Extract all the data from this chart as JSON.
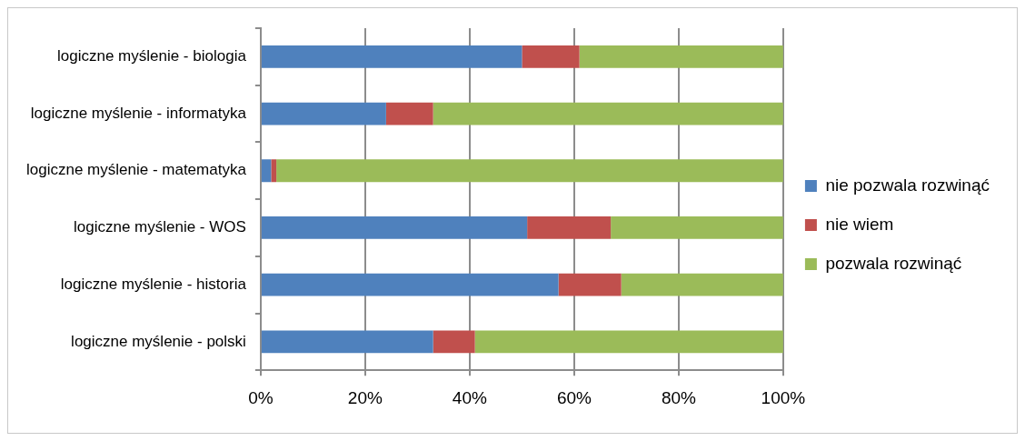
{
  "chart_data": {
    "type": "bar",
    "orientation": "horizontal",
    "stacked": true,
    "categories": [
      "logiczne myślenie - biologia",
      "logiczne myślenie - informatyka",
      "logiczne myślenie - matematyka",
      "logiczne myślenie - WOS",
      "logiczne myślenie - historia",
      "logiczne myślenie - polski"
    ],
    "series": [
      {
        "name": "nie pozwala rozwinąć",
        "color": "#4f81bd",
        "values": [
          50,
          24,
          2,
          51,
          57,
          33
        ]
      },
      {
        "name": "nie wiem",
        "color": "#c0504d",
        "values": [
          11,
          9,
          1,
          16,
          12,
          8
        ]
      },
      {
        "name": "pozwala rozwinąć",
        "color": "#9bbb59",
        "values": [
          39,
          67,
          97,
          33,
          31,
          59
        ]
      }
    ],
    "xlim": [
      0,
      100
    ],
    "xticks": [
      {
        "value": 0,
        "label": "0%"
      },
      {
        "value": 20,
        "label": "20%"
      },
      {
        "value": 40,
        "label": "40%"
      },
      {
        "value": 60,
        "label": "60%"
      },
      {
        "value": 80,
        "label": "80%"
      },
      {
        "value": 100,
        "label": "100%"
      }
    ],
    "grid": "x",
    "legend": "right"
  }
}
